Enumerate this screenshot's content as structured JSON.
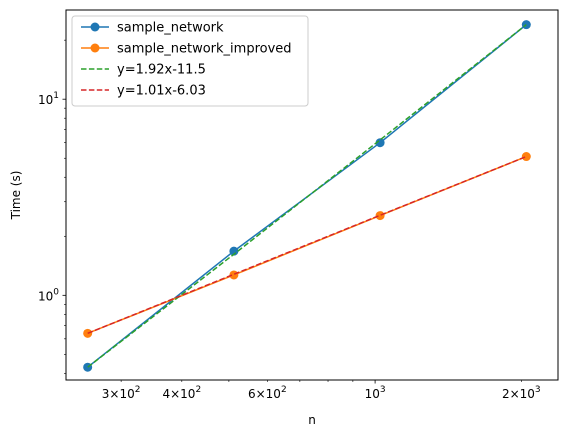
{
  "chart_data": {
    "type": "line",
    "xscale": "log",
    "yscale": "log",
    "xlabel": "n",
    "ylabel": "Time (s)",
    "xlim": [
      231,
      2380
    ],
    "ylim": [
      0.37,
      28.5
    ],
    "grid": false,
    "legend_position": "top-left",
    "x_major_ticks": [
      {
        "value": 1000,
        "label": "10",
        "exp": "3"
      }
    ],
    "x_minor_ticks": [
      {
        "value": 300,
        "mant": "3",
        "exp": "2"
      },
      {
        "value": 400,
        "mant": "4",
        "exp": "2"
      },
      {
        "value": 600,
        "mant": "6",
        "exp": "2"
      },
      {
        "value": 2000,
        "mant": "2",
        "exp": "3"
      }
    ],
    "y_major_ticks": [
      {
        "value": 1,
        "label": "10",
        "exp": "0"
      },
      {
        "value": 10,
        "label": "10",
        "exp": "1"
      }
    ],
    "series": [
      {
        "name": "sample_network",
        "style": "solid",
        "marker": "o",
        "color": "#1f77b4",
        "x": [
          256,
          512,
          1024,
          2048
        ],
        "y": [
          0.43,
          1.68,
          6.0,
          24.0
        ]
      },
      {
        "name": "sample_network_improved",
        "style": "solid",
        "marker": "o",
        "color": "#ff7f0e",
        "x": [
          256,
          512,
          1024,
          2048
        ],
        "y": [
          0.64,
          1.27,
          2.55,
          5.1
        ]
      },
      {
        "name": "y=1.92x-11.5",
        "style": "dashed",
        "marker": "none",
        "color": "#2ca02c",
        "x": [
          256,
          512,
          1024,
          2048
        ],
        "y": [
          0.43,
          1.62,
          6.2,
          24.0
        ]
      },
      {
        "name": "y=1.01x-6.03",
        "style": "dashed",
        "marker": "none",
        "color": "#d62728",
        "x": [
          256,
          512,
          1024,
          2048
        ],
        "y": [
          0.64,
          1.28,
          2.56,
          5.1
        ]
      }
    ]
  }
}
